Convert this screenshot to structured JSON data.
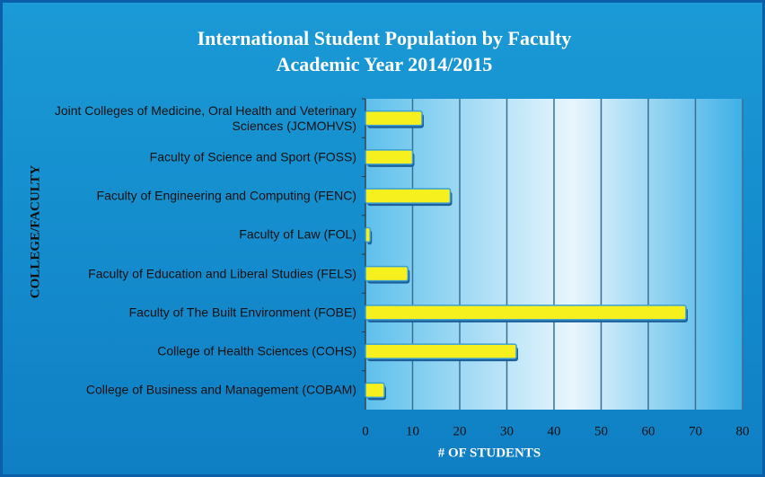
{
  "chart_data": {
    "type": "bar",
    "orientation": "horizontal",
    "title": "International Student Population by Faculty",
    "subtitle": "Academic Year 2014/2015",
    "x_label": "# OF STUDENTS",
    "y_label": "COLLEGE/FACULTY",
    "categories": [
      "Joint Colleges of Medicine, Oral Health and Veterinary Sciences  (JCMOHVS)",
      "Faculty of Science and Sport (FOSS)",
      "Faculty of Engineering and Computing (FENC)",
      "Faculty of Law (FOL)",
      "Faculty of Education and Liberal Studies (FELS)",
      "Faculty of The Built Environment (FOBE)",
      "College of Health Sciences (COHS)",
      "College of Business and Management (COBAM)"
    ],
    "values": [
      12,
      10,
      18,
      1,
      9,
      68,
      32,
      4
    ],
    "color": "#f5f01e",
    "xlim": [
      0,
      80
    ],
    "xticks": [
      0,
      10,
      20,
      30,
      40,
      50,
      60,
      70,
      80
    ],
    "grid": true
  }
}
